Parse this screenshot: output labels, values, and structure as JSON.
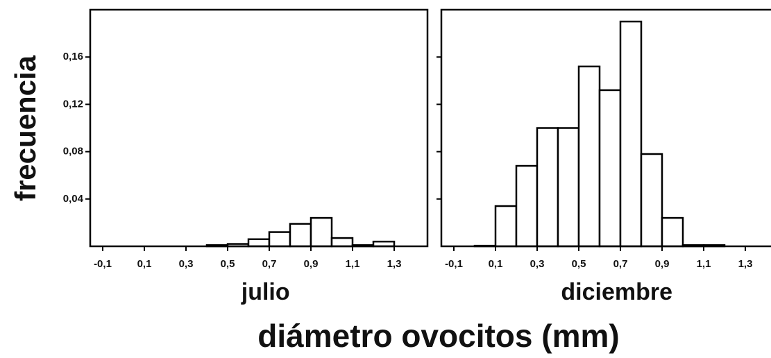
{
  "ylabel": "frecuencia",
  "xlabel": "diámetro ovocitos (mm)",
  "chart_data": [
    {
      "type": "histogram",
      "label": "julio",
      "color": "#ffffff",
      "bins": [
        0.4,
        0.5,
        0.6,
        0.7,
        0.8,
        0.9,
        1.0,
        1.1,
        1.2,
        1.3
      ],
      "values": [
        0.001,
        0.002,
        0.006,
        0.012,
        0.019,
        0.024,
        0.007,
        0.001,
        0.004
      ],
      "xlim": [
        -0.16,
        1.46
      ],
      "ylim": [
        0,
        0.2
      ],
      "xticks": [
        {
          "value": -0.1,
          "label": "-0,1"
        },
        {
          "value": 0.1,
          "label": "0,1"
        },
        {
          "value": 0.3,
          "label": "0,3"
        },
        {
          "value": 0.5,
          "label": "0,5"
        },
        {
          "value": 0.7,
          "label": "0,7"
        },
        {
          "value": 0.9,
          "label": "0,9"
        },
        {
          "value": 1.1,
          "label": "1,1"
        },
        {
          "value": 1.3,
          "label": "1,3"
        }
      ],
      "yticks": [
        {
          "value": 0.04,
          "label": "0,04"
        },
        {
          "value": 0.08,
          "label": "0,08"
        },
        {
          "value": 0.12,
          "label": "0,12"
        },
        {
          "value": 0.16,
          "label": "0,16"
        }
      ]
    },
    {
      "type": "histogram",
      "label": "diciembre",
      "color": "#ffffff",
      "bins": [
        0.0,
        0.1,
        0.2,
        0.3,
        0.4,
        0.5,
        0.6,
        0.7,
        0.8,
        0.9,
        1.0,
        1.1,
        1.2
      ],
      "values": [
        0.0005,
        0.034,
        0.068,
        0.1,
        0.1,
        0.152,
        0.132,
        0.19,
        0.078,
        0.024,
        0.001,
        0.001
      ],
      "xlim": [
        -0.16,
        1.46
      ],
      "ylim": [
        0,
        0.2
      ],
      "xticks": [
        {
          "value": -0.1,
          "label": "-0,1"
        },
        {
          "value": 0.1,
          "label": "0,1"
        },
        {
          "value": 0.3,
          "label": "0,3"
        },
        {
          "value": 0.5,
          "label": "0,5"
        },
        {
          "value": 0.7,
          "label": "0,7"
        },
        {
          "value": 0.9,
          "label": "0,9"
        },
        {
          "value": 1.1,
          "label": "1,1"
        },
        {
          "value": 1.3,
          "label": "1,3"
        }
      ],
      "yticks": [
        0.04,
        0.08,
        0.12,
        0.16
      ]
    }
  ]
}
